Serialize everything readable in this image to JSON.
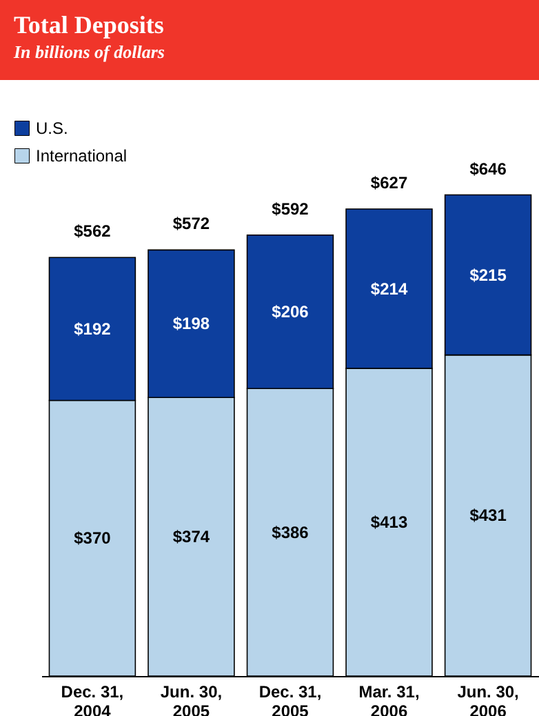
{
  "chart_data": {
    "type": "bar",
    "title": "Total Deposits",
    "subtitle": "In billions of dollars",
    "categories": [
      "Dec. 31, 2004",
      "Jun. 30, 2005",
      "Dec. 31, 2005",
      "Mar. 31, 2006",
      "Jun. 30, 2006"
    ],
    "stacked": true,
    "legend": "top left",
    "series": [
      {
        "name": "International",
        "color": "#b7d4ea",
        "values": [
          370,
          374,
          386,
          413,
          431
        ],
        "value_labels": [
          "$370",
          "$374",
          "$386",
          "$413",
          "$431"
        ]
      },
      {
        "name": "U.S.",
        "color": "#0d3f9e",
        "values": [
          192,
          198,
          206,
          214,
          215
        ],
        "value_labels": [
          "$192",
          "$198",
          "$206",
          "$214",
          "$215"
        ]
      }
    ],
    "totals": [
      "$562",
      "$572",
      "$592",
      "$627",
      "$646"
    ]
  }
}
